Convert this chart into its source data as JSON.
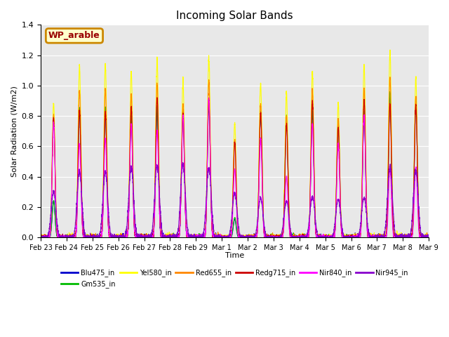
{
  "title": "Incoming Solar Bands",
  "xlabel": "Time",
  "ylabel": "Solar Radiation (W/m2)",
  "legend_label": "WP_arable",
  "ylim": [
    0,
    1.4
  ],
  "series_order": [
    "Blu475_in",
    "Gm535_in",
    "Yel580_in",
    "Red655_in",
    "Redg715_in",
    "Nir840_in",
    "Nir945_in"
  ],
  "series": {
    "Blu475_in": {
      "color": "#0000cc",
      "lw": 0.8
    },
    "Gm535_in": {
      "color": "#00bb00",
      "lw": 0.8
    },
    "Yel580_in": {
      "color": "#ffff00",
      "lw": 0.8
    },
    "Red655_in": {
      "color": "#ff8800",
      "lw": 0.8
    },
    "Redg715_in": {
      "color": "#cc0000",
      "lw": 0.8
    },
    "Nir840_in": {
      "color": "#ff00ff",
      "lw": 0.8
    },
    "Nir945_in": {
      "color": "#8800cc",
      "lw": 0.8
    }
  },
  "x_tick_labels": [
    "Feb 23",
    "Feb 24",
    "Feb 25",
    "Feb 26",
    "Feb 27",
    "Feb 28",
    "Feb 29",
    "Mar 1",
    "Mar 2",
    "Mar 3",
    "Mar 4",
    "Mar 5",
    "Mar 6",
    "Mar 7",
    "Mar 8",
    "Mar 9"
  ],
  "bg_color": "#e8e8e8",
  "legend_box_facecolor": "#ffffcc",
  "legend_box_edgecolor": "#cc8800",
  "legend_text_color": "#990000",
  "day_peaks": {
    "Yel580_in": [
      0.89,
      1.13,
      1.13,
      1.09,
      1.17,
      1.02,
      1.18,
      0.75,
      1.01,
      0.95,
      1.09,
      0.88,
      1.13,
      1.22,
      1.05
    ],
    "Red655_in": [
      0.8,
      0.97,
      0.98,
      0.94,
      1.01,
      0.87,
      1.03,
      0.64,
      0.88,
      0.8,
      0.96,
      0.77,
      0.97,
      1.05,
      0.92
    ],
    "Redg715_in": [
      0.79,
      0.83,
      0.82,
      0.85,
      0.92,
      0.82,
      0.91,
      0.63,
      0.82,
      0.75,
      0.9,
      0.73,
      0.9,
      0.88,
      0.87
    ],
    "Nir840_in": [
      0.75,
      0.62,
      0.65,
      0.74,
      0.7,
      0.8,
      0.91,
      0.45,
      0.65,
      0.4,
      0.75,
      0.62,
      0.8,
      0.45,
      0.46
    ],
    "Nir945_in": [
      0.3,
      0.43,
      0.43,
      0.46,
      0.47,
      0.48,
      0.46,
      0.29,
      0.26,
      0.24,
      0.27,
      0.25,
      0.26,
      0.46,
      0.44
    ],
    "Blu475_in": [
      0.24,
      0.84,
      0.84,
      0.82,
      0.85,
      0.83,
      0.88,
      0.12,
      0.82,
      0.79,
      0.82,
      0.77,
      0.82,
      0.94,
      0.9
    ],
    "Gm535_in": [
      0.24,
      0.85,
      0.85,
      0.83,
      0.86,
      0.84,
      0.89,
      0.13,
      0.83,
      0.8,
      0.83,
      0.77,
      0.83,
      0.95,
      0.91
    ]
  }
}
